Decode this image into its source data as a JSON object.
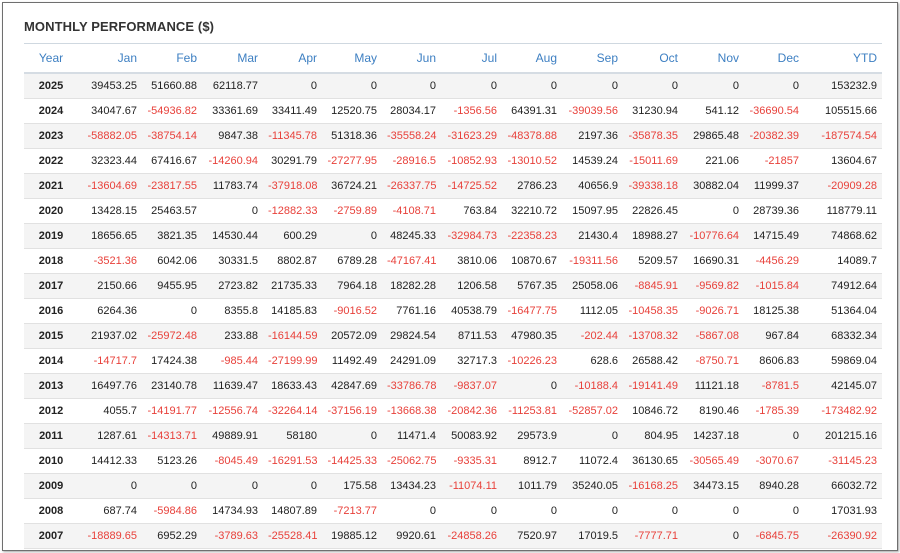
{
  "title": "MONTHLY PERFORMANCE ($)",
  "colors": {
    "header_text": "#3d7fc2",
    "negative": "#e8403a",
    "positive": "#222222"
  },
  "columns": [
    "Year",
    "Jan",
    "Feb",
    "Mar",
    "Apr",
    "May",
    "Jun",
    "Jul",
    "Aug",
    "Sep",
    "Oct",
    "Nov",
    "Dec",
    "YTD"
  ],
  "rows": [
    {
      "year": "2025",
      "values": [
        "39453.25",
        "51660.88",
        "62118.77",
        "0",
        "0",
        "0",
        "0",
        "0",
        "0",
        "0",
        "0",
        "0",
        "153232.9"
      ]
    },
    {
      "year": "2024",
      "values": [
        "34047.67",
        "-54936.82",
        "33361.69",
        "33411.49",
        "12520.75",
        "28034.17",
        "-1356.56",
        "64391.31",
        "-39039.56",
        "31230.94",
        "541.12",
        "-36690.54",
        "105515.66"
      ]
    },
    {
      "year": "2023",
      "values": [
        "-58882.05",
        "-38754.14",
        "9847.38",
        "-11345.78",
        "51318.36",
        "-35558.24",
        "-31623.29",
        "-48378.88",
        "2197.36",
        "-35878.35",
        "29865.48",
        "-20382.39",
        "-187574.54"
      ]
    },
    {
      "year": "2022",
      "values": [
        "32323.44",
        "67416.67",
        "-14260.94",
        "30291.79",
        "-27277.95",
        "-28916.5",
        "-10852.93",
        "-13010.52",
        "14539.24",
        "-15011.69",
        "221.06",
        "-21857",
        "13604.67"
      ]
    },
    {
      "year": "2021",
      "values": [
        "-13604.69",
        "-23817.55",
        "11783.74",
        "-37918.08",
        "36724.21",
        "-26337.75",
        "-14725.52",
        "2786.23",
        "40656.9",
        "-39338.18",
        "30882.04",
        "11999.37",
        "-20909.28"
      ]
    },
    {
      "year": "2020",
      "values": [
        "13428.15",
        "25463.57",
        "0",
        "-12882.33",
        "-2759.89",
        "-4108.71",
        "763.84",
        "32210.72",
        "15097.95",
        "22826.45",
        "0",
        "28739.36",
        "118779.11"
      ]
    },
    {
      "year": "2019",
      "values": [
        "18656.65",
        "3821.35",
        "14530.44",
        "600.29",
        "0",
        "48245.33",
        "-32984.73",
        "-22358.23",
        "21430.4",
        "18988.27",
        "-10776.64",
        "14715.49",
        "74868.62"
      ]
    },
    {
      "year": "2018",
      "values": [
        "-3521.36",
        "6042.06",
        "30331.5",
        "8802.87",
        "6789.28",
        "-47167.41",
        "3810.06",
        "10870.67",
        "-19311.56",
        "5209.57",
        "16690.31",
        "-4456.29",
        "14089.7"
      ]
    },
    {
      "year": "2017",
      "values": [
        "2150.66",
        "9455.95",
        "2723.82",
        "21735.33",
        "7964.18",
        "18282.28",
        "1206.58",
        "5767.35",
        "25058.06",
        "-8845.91",
        "-9569.82",
        "-1015.84",
        "74912.64"
      ]
    },
    {
      "year": "2016",
      "values": [
        "6264.36",
        "0",
        "8355.8",
        "14185.83",
        "-9016.52",
        "7761.16",
        "40538.79",
        "-16477.75",
        "1112.05",
        "-10458.35",
        "-9026.71",
        "18125.38",
        "51364.04"
      ]
    },
    {
      "year": "2015",
      "values": [
        "21937.02",
        "-25972.48",
        "233.88",
        "-16144.59",
        "20572.09",
        "29824.54",
        "8711.53",
        "47980.35",
        "-202.44",
        "-13708.32",
        "-5867.08",
        "967.84",
        "68332.34"
      ]
    },
    {
      "year": "2014",
      "values": [
        "-14717.7",
        "17424.38",
        "-985.44",
        "-27199.99",
        "11492.49",
        "24291.09",
        "32717.3",
        "-10226.23",
        "628.6",
        "26588.42",
        "-8750.71",
        "8606.83",
        "59869.04"
      ]
    },
    {
      "year": "2013",
      "values": [
        "16497.76",
        "23140.78",
        "11639.47",
        "18633.43",
        "42847.69",
        "-33786.78",
        "-9837.07",
        "0",
        "-10188.4",
        "-19141.49",
        "11121.18",
        "-8781.5",
        "42145.07"
      ]
    },
    {
      "year": "2012",
      "values": [
        "4055.7",
        "-14191.77",
        "-12556.74",
        "-32264.14",
        "-37156.19",
        "-13668.38",
        "-20842.36",
        "-11253.81",
        "-52857.02",
        "10846.72",
        "8190.46",
        "-1785.39",
        "-173482.92"
      ]
    },
    {
      "year": "2011",
      "values": [
        "1287.61",
        "-14313.71",
        "49889.91",
        "58180",
        "0",
        "11471.4",
        "50083.92",
        "29573.9",
        "0",
        "804.95",
        "14237.18",
        "0",
        "201215.16"
      ]
    },
    {
      "year": "2010",
      "values": [
        "14412.33",
        "5123.26",
        "-8045.49",
        "-16291.53",
        "-14425.33",
        "-25062.75",
        "-9335.31",
        "8912.7",
        "11072.4",
        "36130.65",
        "-30565.49",
        "-3070.67",
        "-31145.23"
      ]
    },
    {
      "year": "2009",
      "values": [
        "0",
        "0",
        "0",
        "0",
        "175.58",
        "13434.23",
        "-11074.11",
        "1011.79",
        "35240.05",
        "-16168.25",
        "34473.15",
        "8940.28",
        "66032.72"
      ]
    },
    {
      "year": "2008",
      "values": [
        "687.74",
        "-5984.86",
        "14734.93",
        "14807.89",
        "-7213.77",
        "0",
        "0",
        "0",
        "0",
        "0",
        "0",
        "0",
        "17031.93"
      ]
    },
    {
      "year": "2007",
      "values": [
        "-18889.65",
        "6952.29",
        "-3789.63",
        "-25528.41",
        "19885.12",
        "9920.61",
        "-24858.26",
        "7520.97",
        "17019.5",
        "-7777.71",
        "0",
        "-6845.75",
        "-26390.92"
      ]
    }
  ]
}
